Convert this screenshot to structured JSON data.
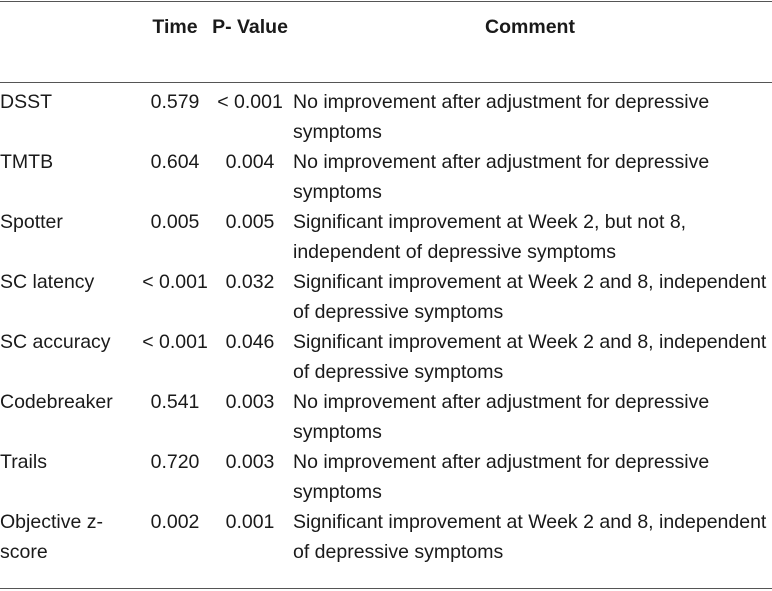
{
  "table": {
    "headers": {
      "measure": "",
      "time": "Time",
      "p_value": "P- Value",
      "comment": "Comment"
    },
    "rows": [
      {
        "measure": "DSST",
        "time": "0.579",
        "p_value": "< 0.001",
        "comment": "No improvement after adjustment for depressive symptoms"
      },
      {
        "measure": "TMTB",
        "time": "0.604",
        "p_value": "0.004",
        "comment": "No improvement after adjustment for depressive symptoms"
      },
      {
        "measure": "Spotter",
        "time": "0.005",
        "p_value": "0.005",
        "comment": "Significant improvement at Week 2, but not 8, independent of depressive symptoms"
      },
      {
        "measure": "SC latency",
        "time": "< 0.001",
        "p_value": "0.032",
        "comment": "Significant improvement at Week 2 and 8, independent of depressive symptoms"
      },
      {
        "measure": "SC accuracy",
        "time": "< 0.001",
        "p_value": "0.046",
        "comment": "Significant improvement at Week 2 and 8, independent of depressive symptoms"
      },
      {
        "measure": "Codebreaker",
        "time": "0.541",
        "p_value": "0.003",
        "comment": "No improvement after adjustment for depressive symptoms"
      },
      {
        "measure": "Trails",
        "time": "0.720",
        "p_value": "0.003",
        "comment": "No improvement after adjustment for depressive symptoms"
      },
      {
        "measure": "Objective z-score",
        "time": "0.002",
        "p_value": "0.001",
        "comment": "Significant improvement at Week 2 and 8, independent of depressive symptoms"
      }
    ]
  }
}
